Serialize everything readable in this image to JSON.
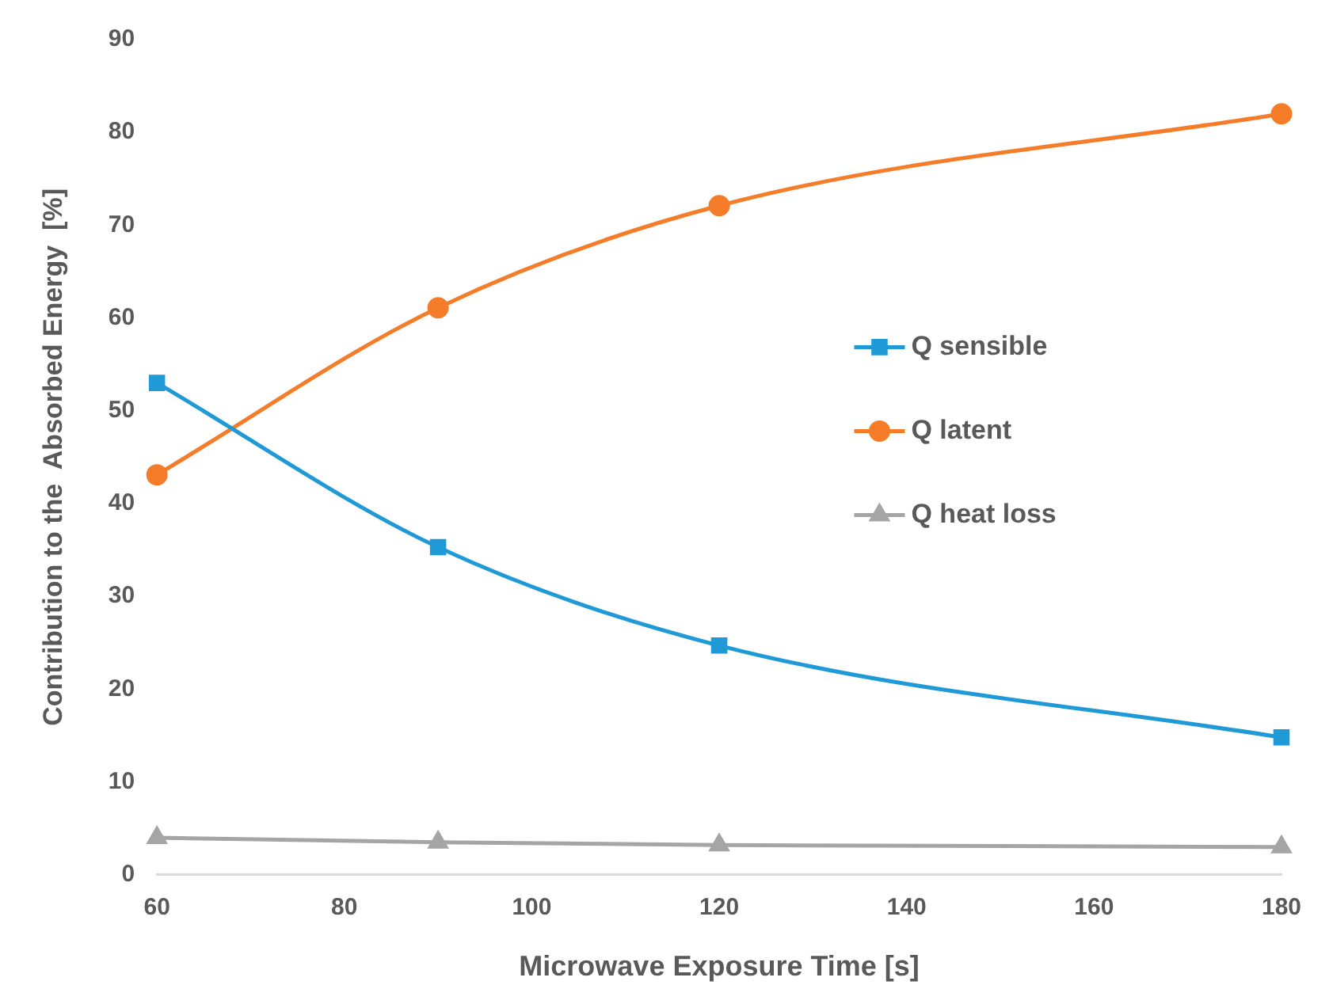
{
  "chart_data": {
    "type": "line",
    "xlabel": "Microwave Exposure Time [s]",
    "ylabel": "Contribution to the  Absorbed Energy  [%]",
    "x": [
      60,
      90,
      120,
      180
    ],
    "series": [
      {
        "name": "Q sensible",
        "color": "#1f9ad6",
        "marker": "square",
        "values": [
          53,
          35.3,
          24.7,
          14.8
        ]
      },
      {
        "name": "Q latent",
        "color": "#f57c28",
        "marker": "circle",
        "values": [
          43.1,
          61.1,
          72.1,
          82
        ]
      },
      {
        "name": "Q heat loss",
        "color": "#a5a5a5",
        "marker": "triangle",
        "values": [
          4,
          3.5,
          3.2,
          3
        ]
      }
    ],
    "xlim": [
      60,
      180
    ],
    "xticks": [
      60,
      80,
      100,
      120,
      140,
      160,
      180
    ],
    "ylim": [
      0,
      90
    ],
    "yticks": [
      0,
      10,
      20,
      30,
      40,
      50,
      60,
      70,
      80,
      90
    ],
    "grid": false,
    "legend": "right"
  }
}
